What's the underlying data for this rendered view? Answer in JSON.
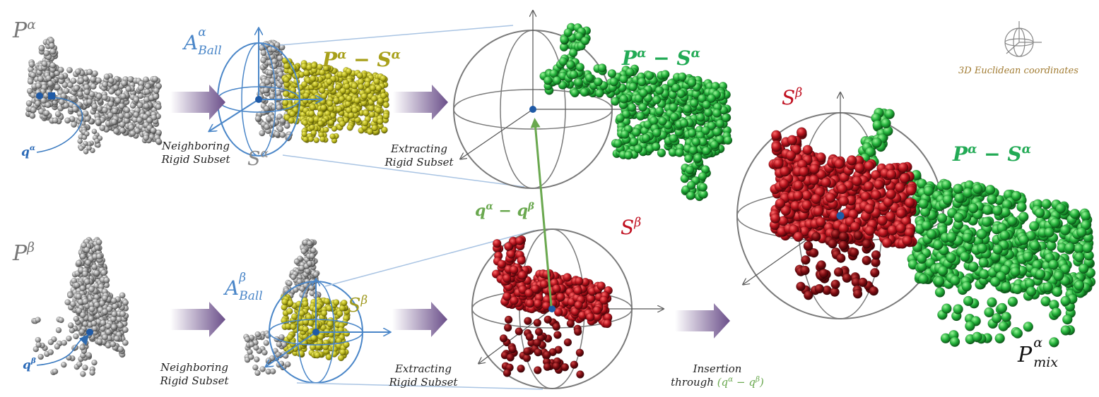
{
  "colors": {
    "gray_points": "#8a8a8a",
    "olive_points": "#b5b21c",
    "green_points": "#1fae3a",
    "red_points": "#b0121a",
    "ball_blue": "#4a86c8",
    "sphere_gray": "#7a7a7a",
    "arrow_purple": "#6b4f8a",
    "label_green": "#22aa55",
    "label_red": "#c01020",
    "label_olive": "#a09a20",
    "vector_green": "#6aa84f",
    "legend_brown": "#a07a30"
  },
  "icons": {
    "axes": "3d-axes-sphere-icon",
    "arrow": "gradient-right-arrow-icon"
  },
  "labels": {
    "p_alpha": {
      "base": "P",
      "sup": "α"
    },
    "p_beta": {
      "base": "P",
      "sup": "β"
    },
    "q_alpha": {
      "base": "q",
      "sup": "α"
    },
    "q_beta": {
      "base": "q",
      "sup": "β"
    },
    "a_ball_alpha": {
      "base": "A",
      "sup": "α",
      "sub": "Ball"
    },
    "a_ball_beta": {
      "base": "A",
      "sup": "β",
      "sub": "Ball"
    },
    "s_alpha": {
      "base": "S",
      "sup": "α"
    },
    "s_beta_olive": {
      "base": "S",
      "sup": "β"
    },
    "p_minus_s_olive": {
      "text": "P",
      "sup1": "α",
      "mid": " − S",
      "sup2": "α"
    },
    "p_minus_s_green_top": {
      "text": "P",
      "sup1": "α",
      "mid": " − S",
      "sup2": "α"
    },
    "p_minus_s_green_right": {
      "text": "P",
      "sup1": "α",
      "mid": " − S",
      "sup2": "α"
    },
    "s_beta_red_mid": {
      "base": "S",
      "sup": "β"
    },
    "s_beta_red_right": {
      "base": "S",
      "sup": "β"
    },
    "q_diff": {
      "a": "q",
      "sa": "α",
      "mid": " − q",
      "sb": "β"
    },
    "p_mix": {
      "base": "P",
      "sup": "α",
      "sub": "mix"
    }
  },
  "captions": {
    "neighboring_top": [
      "Neighboring",
      "Rigid Subset"
    ],
    "neighboring_bottom": [
      "Neighboring",
      "Rigid Subset"
    ],
    "extracting_top": [
      "Extracting",
      "Rigid Subset"
    ],
    "extracting_bottom": [
      "Extracting",
      "Rigid Subset"
    ],
    "insertion": {
      "line1": "Insertion",
      "line2": "through ",
      "formula": "(q",
      "fa": "α",
      "fmid": " − q",
      "fb": "β",
      "fend": ")"
    }
  },
  "legend": {
    "text": "3D Euclidean coordinates"
  }
}
